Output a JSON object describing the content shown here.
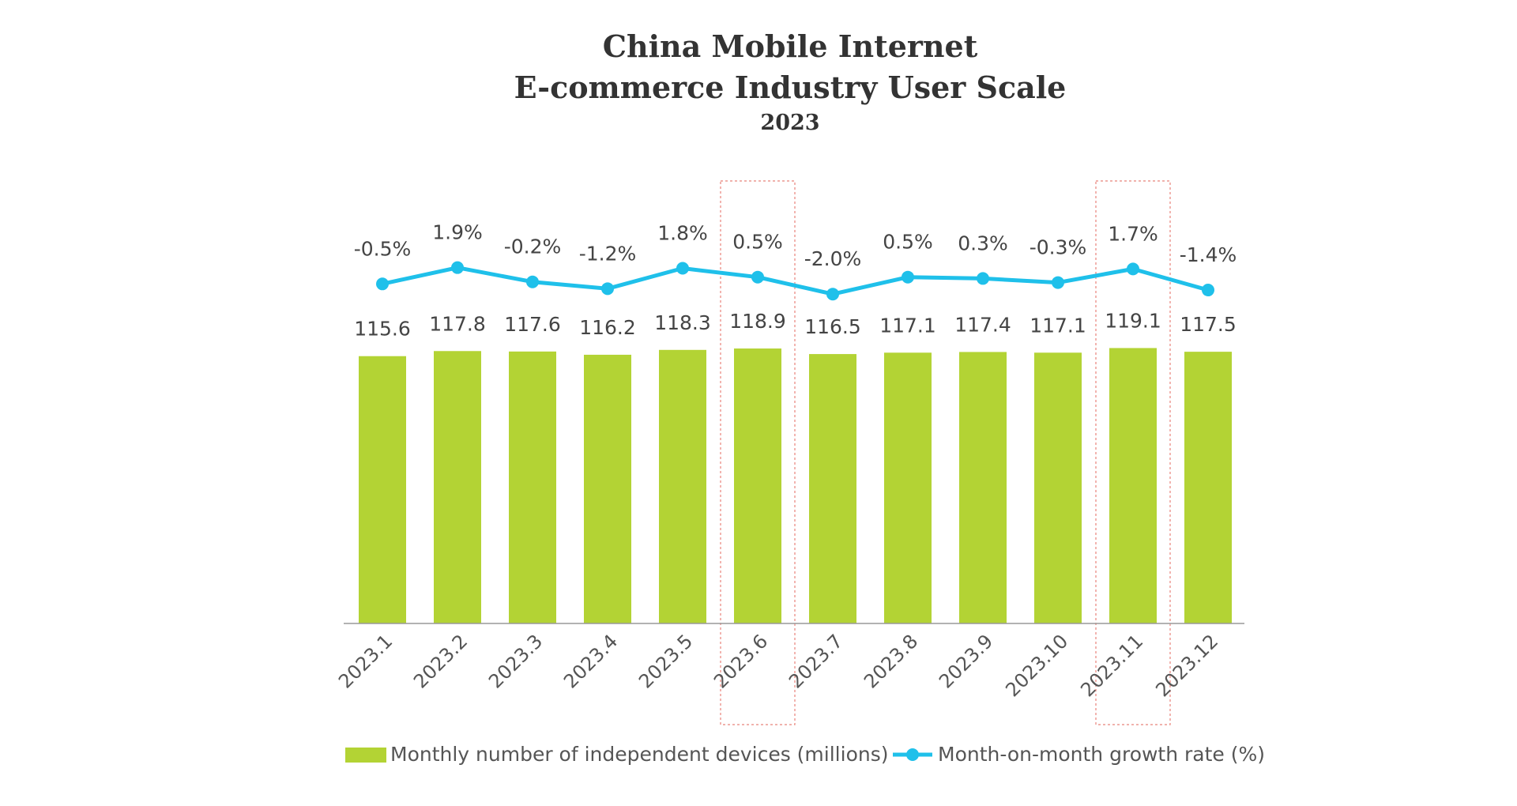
{
  "chart_data": {
    "type": "bar",
    "title_lines": [
      "China Mobile Internet",
      "E-commerce Industry User Scale"
    ],
    "subtitle": "2023",
    "categories": [
      "2023.1",
      "2023.2",
      "2023.3",
      "2023.4",
      "2023.5",
      "2023.6",
      "2023.7",
      "2023.8",
      "2023.9",
      "2023.10",
      "2023.11",
      "2023.12"
    ],
    "series": [
      {
        "name": "Monthly number of independent devices (millions)",
        "type": "bar",
        "values": [
          115.6,
          117.8,
          117.6,
          116.2,
          118.3,
          118.9,
          116.5,
          117.1,
          117.4,
          117.1,
          119.1,
          117.5
        ],
        "labels": [
          "115.6",
          "117.8",
          "117.6",
          "116.2",
          "118.3",
          "118.9",
          "116.5",
          "117.1",
          "117.4",
          "117.1",
          "119.1",
          "117.5"
        ]
      },
      {
        "name": "Month-on-month growth rate (%)",
        "type": "line",
        "values": [
          -0.5,
          1.9,
          -0.2,
          -1.2,
          1.8,
          0.5,
          -2.0,
          0.5,
          0.3,
          -0.3,
          1.7,
          -1.4
        ],
        "labels": [
          "-0.5%",
          "1.9%",
          "-0.2%",
          "-1.2%",
          "1.8%",
          "0.5%",
          "-2.0%",
          "0.5%",
          "0.3%",
          "-0.3%",
          "1.7%",
          "-1.4%"
        ]
      }
    ],
    "highlighted_categories": [
      "2023.6",
      "2023.11"
    ],
    "legend_position": "bottom",
    "grid": false,
    "colors": {
      "bar": "#b3d334",
      "line": "#1fc0ea",
      "highlight": "#e8837a",
      "axis": "#999999"
    }
  }
}
